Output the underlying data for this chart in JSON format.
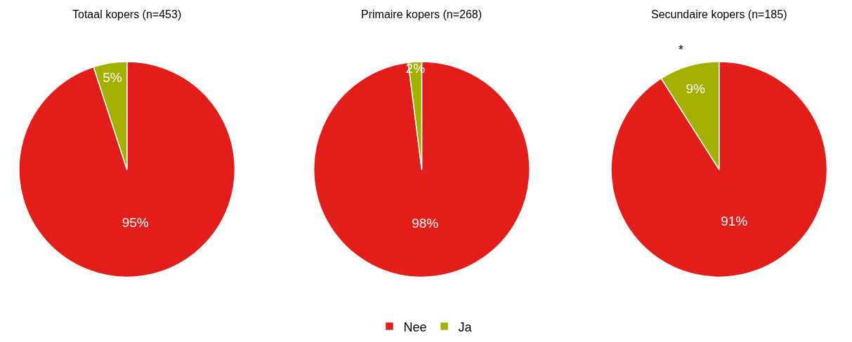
{
  "chart_data": [
    {
      "type": "pie",
      "title": "Totaal kopers (n=453)",
      "categories": [
        "Nee",
        "Ja"
      ],
      "values": [
        95,
        5
      ],
      "value_labels": [
        "95%",
        "5%"
      ],
      "colors": [
        "#e31e1a",
        "#a2b000"
      ],
      "legend": "bottom"
    },
    {
      "type": "pie",
      "title": "Primaire kopers (n=268)",
      "categories": [
        null,
        null
      ],
      "values": [
        98,
        2
      ],
      "value_labels": [
        "98%",
        "2%"
      ],
      "colors": [
        "#e31e1a",
        "#a2b000"
      ]
    },
    {
      "type": "pie",
      "title": "Secundaire kopers (n=185)",
      "categories": [
        null,
        null
      ],
      "values": [
        91,
        9
      ],
      "value_labels": [
        "91%",
        "9%"
      ],
      "colors": [
        "#e31e1a",
        "#a2b000"
      ],
      "annotations": [
        "*"
      ]
    }
  ]
}
